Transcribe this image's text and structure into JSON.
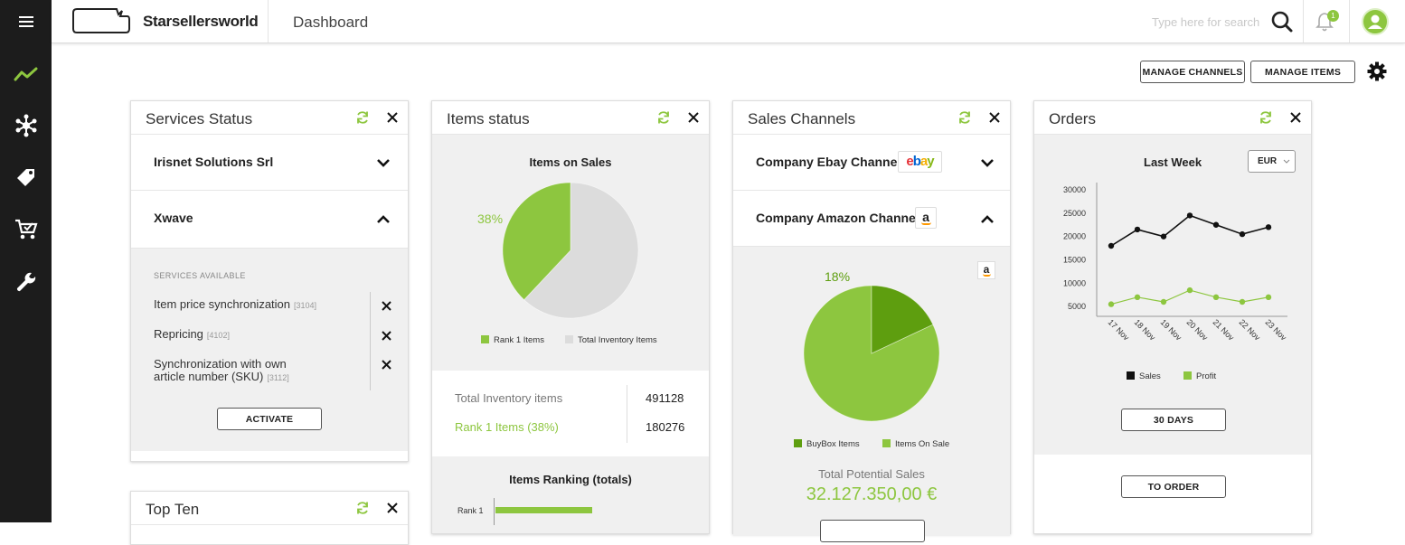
{
  "brand": "Starsellersworld",
  "page_title": "Dashboard",
  "search": {
    "placeholder": "Type here for search"
  },
  "notifications": {
    "count": "1"
  },
  "actions": {
    "manage_channels": "MANAGE CHANNELS",
    "manage_items": "MANAGE ITEMS"
  },
  "colors": {
    "accent": "#8dc63f",
    "dark_green": "#5e9e0f",
    "sidebar": "#1c1c1c"
  },
  "services": {
    "title": "Services Status",
    "companies": [
      {
        "name": "Irisnet Solutions Srl",
        "state": "collapsed"
      },
      {
        "name": "Xwave",
        "state": "expanded"
      }
    ],
    "available_label": "SERVICES AVAILABLE",
    "items": [
      {
        "line1": "Item price synchronization",
        "line2": "",
        "code": "[3104]"
      },
      {
        "line1": "Repricing",
        "line2": "",
        "code": "[4102]"
      },
      {
        "line1": "Synchronization with own",
        "line2": "article number (SKU)",
        "code": "[3112]"
      }
    ],
    "activate": "ACTIVATE"
  },
  "items_status": {
    "title": "Items status",
    "chart_title": "Items on Sales",
    "pct_label": "38%",
    "legend": [
      "Rank 1 Items",
      "Total Inventory Items"
    ],
    "stats": [
      {
        "label": "Total Inventory items",
        "value": "491128"
      },
      {
        "label": "Rank 1 Items (38%)",
        "value": "180276"
      }
    ],
    "ranking_title": "Items Ranking (totals)",
    "rank_label": "Rank 1"
  },
  "sales_channels": {
    "title": "Sales Channels",
    "channels": [
      {
        "name": "Company Ebay Channel",
        "state": "collapsed"
      },
      {
        "name": "Company Amazon Channel",
        "state": "expanded"
      }
    ],
    "ebay_logo": "ebay",
    "amazon_logo": "a",
    "pct_label": "18%",
    "legend": [
      "BuyBox Items",
      "Items On Sale"
    ],
    "potential_label": "Total Potential Sales",
    "potential_value": "32.127.350,00 €"
  },
  "orders": {
    "title": "Orders",
    "chart_title": "Last Week",
    "currency": "EUR",
    "range_button": "30 DAYS",
    "order_button": "TO ORDER"
  },
  "top_ten": {
    "title": "Top Ten"
  },
  "chart_data": [
    {
      "type": "pie",
      "title": "Items on Sales",
      "categories": [
        "Rank 1 Items",
        "Total Inventory Items"
      ],
      "values": [
        38,
        62
      ]
    },
    {
      "type": "pie",
      "categories": [
        "BuyBox Items",
        "Items On Sale"
      ],
      "values": [
        18,
        82
      ]
    },
    {
      "type": "line",
      "title": "Last Week",
      "x": [
        "17 Nov",
        "18 Nov",
        "19 Nov",
        "20 Nov",
        "21 Nov",
        "22 Nov",
        "23 Nov"
      ],
      "yticks": [
        5000,
        10000,
        15000,
        20000,
        25000,
        30000
      ],
      "ylim": [
        0,
        32000
      ],
      "series": [
        {
          "name": "Sales",
          "values": [
            18000,
            21500,
            20000,
            24500,
            22500,
            20500,
            22000
          ]
        },
        {
          "name": "Profit",
          "values": [
            5500,
            7000,
            6000,
            8500,
            7000,
            6000,
            7000
          ]
        }
      ],
      "legend": "bottom"
    },
    {
      "type": "bar",
      "title": "Items Ranking (totals)",
      "categories": [
        "Rank 1"
      ],
      "values": [
        180276
      ]
    }
  ]
}
